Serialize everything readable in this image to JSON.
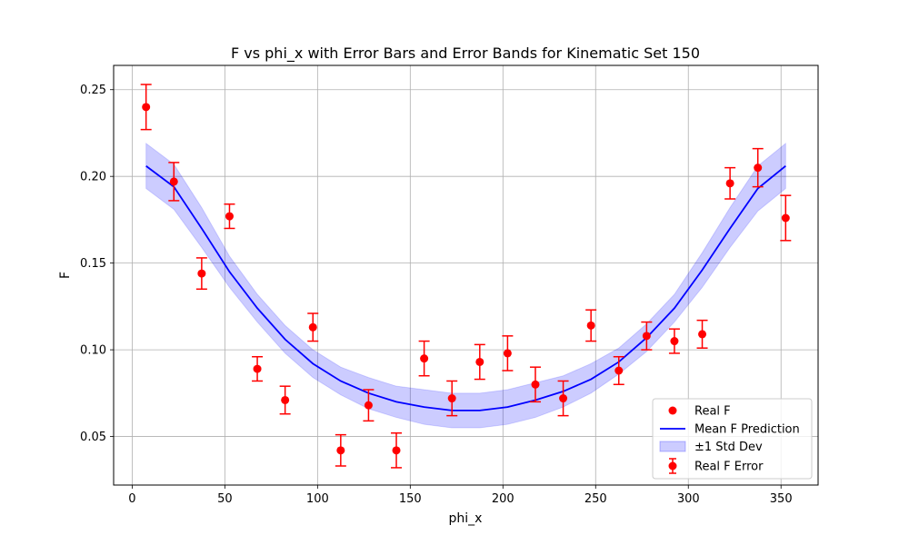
{
  "chart_data": {
    "type": "line",
    "title": "F vs phi_x with Error Bars and Error Bands for Kinematic Set 150",
    "xlabel": "phi_x",
    "ylabel": "F",
    "xlim": [
      -10,
      370
    ],
    "ylim": [
      0.022,
      0.264
    ],
    "xticks": [
      0,
      50,
      100,
      150,
      200,
      250,
      300,
      350
    ],
    "yticks": [
      0.05,
      0.1,
      0.15,
      0.2,
      0.25
    ],
    "ytick_labels": [
      "0.05",
      "0.10",
      "0.15",
      "0.20",
      "0.25"
    ],
    "grid": true,
    "legend_position": "bottom-right",
    "colors": {
      "real": "#ff0000",
      "mean": "#0000ff",
      "band_fill": "#0000ff",
      "grid": "#b0b0b0"
    },
    "legend": [
      {
        "key": "real",
        "label": "Real F"
      },
      {
        "key": "mean",
        "label": "Mean F Prediction"
      },
      {
        "key": "band",
        "label": "±1 Std Dev"
      },
      {
        "key": "err",
        "label": "Real F Error"
      }
    ],
    "series": [
      {
        "name": "Real F",
        "type": "scatter",
        "x": [
          7.5,
          22.5,
          37.5,
          52.5,
          67.5,
          82.5,
          97.5,
          112.5,
          127.5,
          142.5,
          157.5,
          172.5,
          187.5,
          202.5,
          217.5,
          232.5,
          247.5,
          262.5,
          277.5,
          292.5,
          307.5,
          322.5,
          337.5,
          352.5
        ],
        "y": [
          0.24,
          0.197,
          0.144,
          0.177,
          0.089,
          0.071,
          0.113,
          0.042,
          0.068,
          0.042,
          0.095,
          0.072,
          0.093,
          0.098,
          0.08,
          0.072,
          0.114,
          0.088,
          0.108,
          0.105,
          0.109,
          0.196,
          0.205,
          0.176
        ],
        "yerr": [
          0.013,
          0.011,
          0.009,
          0.007,
          0.007,
          0.008,
          0.008,
          0.009,
          0.009,
          0.01,
          0.01,
          0.01,
          0.01,
          0.01,
          0.01,
          0.01,
          0.009,
          0.008,
          0.008,
          0.007,
          0.008,
          0.009,
          0.011,
          0.013
        ]
      },
      {
        "name": "Mean F Prediction",
        "type": "line",
        "x": [
          7.5,
          22.5,
          37.5,
          52.5,
          67.5,
          82.5,
          97.5,
          112.5,
          127.5,
          142.5,
          157.5,
          172.5,
          187.5,
          202.5,
          217.5,
          232.5,
          247.5,
          262.5,
          277.5,
          292.5,
          307.5,
          322.5,
          337.5,
          352.5
        ],
        "y": [
          0.206,
          0.194,
          0.17,
          0.145,
          0.124,
          0.106,
          0.092,
          0.082,
          0.075,
          0.07,
          0.067,
          0.065,
          0.065,
          0.067,
          0.071,
          0.076,
          0.083,
          0.093,
          0.107,
          0.124,
          0.146,
          0.17,
          0.193,
          0.206
        ],
        "band_lower": [
          0.193,
          0.181,
          0.159,
          0.136,
          0.116,
          0.098,
          0.084,
          0.074,
          0.066,
          0.061,
          0.057,
          0.055,
          0.055,
          0.057,
          0.061,
          0.067,
          0.075,
          0.086,
          0.099,
          0.116,
          0.136,
          0.159,
          0.18,
          0.193
        ],
        "band_upper": [
          0.219,
          0.207,
          0.182,
          0.154,
          0.132,
          0.114,
          0.1,
          0.09,
          0.084,
          0.079,
          0.077,
          0.075,
          0.075,
          0.077,
          0.081,
          0.085,
          0.092,
          0.101,
          0.115,
          0.132,
          0.156,
          0.182,
          0.206,
          0.219
        ]
      }
    ]
  }
}
